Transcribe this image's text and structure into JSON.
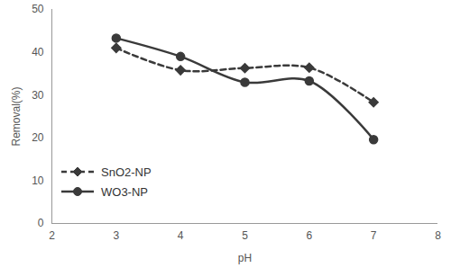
{
  "chart_data": {
    "type": "line",
    "x_label": "pH",
    "y_label": "Removal(%)",
    "x": [
      3,
      4,
      5,
      6,
      7
    ],
    "series": [
      {
        "name": "SnO2-NP",
        "color": "#3a3a3a",
        "marker": "diamond",
        "line_style": "dashed",
        "values": [
          41,
          35.8,
          36.3,
          36.4,
          28.3
        ]
      },
      {
        "name": "WO3-NP",
        "color": "#3a3a3a",
        "marker": "circle",
        "line_style": "solid",
        "values": [
          43.3,
          39,
          33,
          33.3,
          19.6
        ]
      }
    ],
    "xlim": [
      2,
      8
    ],
    "xticks": [
      2,
      3,
      4,
      5,
      6,
      7,
      8
    ],
    "ylim": [
      0,
      50
    ],
    "yticks": [
      0,
      10,
      20,
      30,
      40,
      50
    ],
    "grid": false,
    "legend": "lower left"
  }
}
